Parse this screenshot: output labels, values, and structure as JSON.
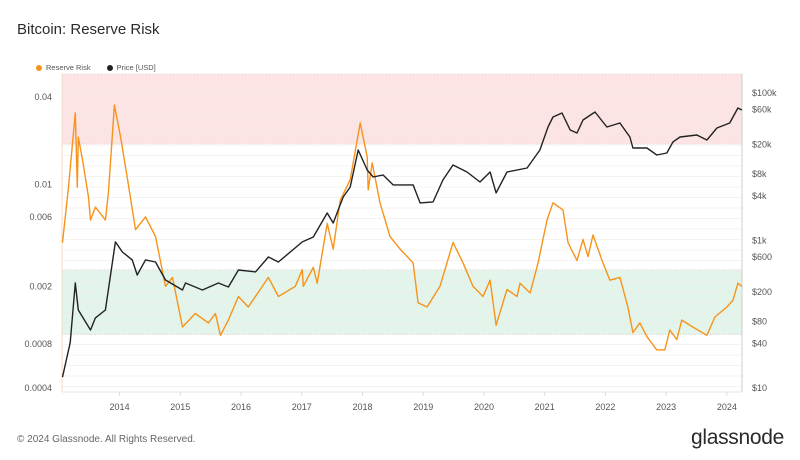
{
  "title": "Bitcoin: Reserve Risk",
  "footer": "© 2024 Glassnode. All Rights Reserved.",
  "logo": "glassnode",
  "colors": {
    "reserve_risk": "#f7931a",
    "price": "#222222",
    "red_zone": "#fde4e4",
    "green_zone": "#e3f5ea"
  },
  "chart_data": {
    "type": "line",
    "title": "Bitcoin: Reserve Risk",
    "legend": {
      "position": "top-left",
      "entries": [
        "Reserve Risk",
        "Price [USD]"
      ]
    },
    "x_range": [
      "2013-01-20",
      "2024-04-01"
    ],
    "x_ticks": [
      "2014",
      "2015",
      "2016",
      "2017",
      "2018",
      "2019",
      "2020",
      "2021",
      "2022",
      "2023",
      "2024"
    ],
    "y_left": {
      "scale": "log",
      "range": [
        0.000375,
        0.0576
      ],
      "ticks": [
        {
          "v": 0.04,
          "label": "0.04"
        },
        {
          "v": 0.01,
          "label": "0.01"
        },
        {
          "v": 0.006,
          "label": "0.006"
        },
        {
          "v": 0.002,
          "label": "0.002"
        },
        {
          "v": 0.0008,
          "label": "0.0008"
        },
        {
          "v": 0.0004,
          "label": "0.0004"
        }
      ]
    },
    "y_right": {
      "scale": "log",
      "range": [
        8.8,
        181000
      ],
      "ticks": [
        {
          "v": 100000,
          "label": "$100k"
        },
        {
          "v": 60000,
          "label": "$60k"
        },
        {
          "v": 20000,
          "label": "$20k"
        },
        {
          "v": 8000,
          "label": "$8k"
        },
        {
          "v": 4000,
          "label": "$4k"
        },
        {
          "v": 1000,
          "label": "$1k"
        },
        {
          "v": 600,
          "label": "$600"
        },
        {
          "v": 200,
          "label": "$200"
        },
        {
          "v": 80,
          "label": "$80"
        },
        {
          "v": 40,
          "label": "$40"
        },
        {
          "v": 10,
          "label": "$10"
        }
      ]
    },
    "zones": [
      {
        "name": "high",
        "axis": "left",
        "from": 0.019,
        "to": 0.0576,
        "color": "#fde4e4"
      },
      {
        "name": "low",
        "axis": "left",
        "from": 0.00093,
        "to": 0.0026,
        "color": "#e3f5ea"
      }
    ],
    "grid": true,
    "series": [
      {
        "name": "Reserve Risk",
        "axis": "left",
        "color": "#f7931a",
        "points": [
          [
            "2013-01-23",
            0.004
          ],
          [
            "2013-02-28",
            0.0096
          ],
          [
            "2013-04-10",
            0.0311
          ],
          [
            "2013-04-22",
            0.0096
          ],
          [
            "2013-04-28",
            0.0212
          ],
          [
            "2013-05-23",
            0.0148
          ],
          [
            "2013-06-28",
            0.0082
          ],
          [
            "2013-07-10",
            0.0057
          ],
          [
            "2013-08-09",
            0.007
          ],
          [
            "2013-10-08",
            0.0057
          ],
          [
            "2013-10-26",
            0.0088
          ],
          [
            "2013-12-01",
            0.0352
          ],
          [
            "2014-01-07",
            0.0212
          ],
          [
            "2014-02-18",
            0.0108
          ],
          [
            "2014-04-07",
            0.0049
          ],
          [
            "2014-06-06",
            0.006
          ],
          [
            "2014-08-05",
            0.0044
          ],
          [
            "2014-10-04",
            0.002
          ],
          [
            "2014-11-15",
            0.0023
          ],
          [
            "2015-01-14",
            0.00105
          ],
          [
            "2015-04-01",
            0.0013
          ],
          [
            "2015-06-19",
            0.00112
          ],
          [
            "2015-07-31",
            0.0013
          ],
          [
            "2015-08-30",
            0.00092
          ],
          [
            "2015-10-17",
            0.00117
          ],
          [
            "2015-12-16",
            0.0017
          ],
          [
            "2016-02-14",
            0.00144
          ],
          [
            "2016-06-14",
            0.0023
          ],
          [
            "2016-08-13",
            0.0017
          ],
          [
            "2016-11-23",
            0.002
          ],
          [
            "2017-01-04",
            0.0026
          ],
          [
            "2017-01-10",
            0.002
          ],
          [
            "2017-03-11",
            0.0027
          ],
          [
            "2017-04-04",
            0.0021
          ],
          [
            "2017-06-03",
            0.0054
          ],
          [
            "2017-07-09",
            0.0036
          ],
          [
            "2017-08-20",
            0.0078
          ],
          [
            "2017-10-19",
            0.0108
          ],
          [
            "2017-12-18",
            0.0265
          ],
          [
            "2018-01-29",
            0.0155
          ],
          [
            "2018-02-04",
            0.0092
          ],
          [
            "2018-02-28",
            0.0141
          ],
          [
            "2018-04-16",
            0.0075
          ],
          [
            "2018-06-15",
            0.0044
          ],
          [
            "2018-08-15",
            0.0036
          ],
          [
            "2018-11-01",
            0.0029
          ],
          [
            "2018-12-01",
            0.00154
          ],
          [
            "2019-01-24",
            0.00144
          ],
          [
            "2019-04-12",
            0.002
          ],
          [
            "2019-05-24",
            0.0029
          ],
          [
            "2019-06-29",
            0.004
          ],
          [
            "2019-08-28",
            0.0029
          ],
          [
            "2019-10-27",
            0.002
          ],
          [
            "2019-12-26",
            0.0017
          ],
          [
            "2020-02-07",
            0.0022
          ],
          [
            "2020-03-14",
            0.00108
          ],
          [
            "2020-05-19",
            0.0019
          ],
          [
            "2020-07-18",
            0.0017
          ],
          [
            "2020-08-05",
            0.0021
          ],
          [
            "2020-10-05",
            0.0018
          ],
          [
            "2020-11-22",
            0.0029
          ],
          [
            "2021-01-15",
            0.0057
          ],
          [
            "2021-02-20",
            0.0075
          ],
          [
            "2021-04-21",
            0.0067
          ],
          [
            "2021-05-21",
            0.004
          ],
          [
            "2021-07-14",
            0.003
          ],
          [
            "2021-08-19",
            0.0042
          ],
          [
            "2021-09-18",
            0.0032
          ],
          [
            "2021-10-18",
            0.0045
          ],
          [
            "2021-12-17",
            0.0029
          ],
          [
            "2022-01-28",
            0.0022
          ],
          [
            "2022-03-29",
            0.0023
          ],
          [
            "2022-05-16",
            0.00144
          ],
          [
            "2022-06-15",
            0.00096
          ],
          [
            "2022-07-27",
            0.00112
          ],
          [
            "2022-09-07",
            0.0009
          ],
          [
            "2022-11-06",
            0.00073
          ],
          [
            "2022-12-24",
            0.00073
          ],
          [
            "2023-01-23",
            0.001
          ],
          [
            "2023-03-06",
            0.00086
          ],
          [
            "2023-04-05",
            0.00117
          ],
          [
            "2023-06-10",
            0.00105
          ],
          [
            "2023-09-03",
            0.00092
          ],
          [
            "2023-10-21",
            0.00123
          ],
          [
            "2024-01-01",
            0.00144
          ],
          [
            "2024-02-06",
            0.0016
          ],
          [
            "2024-03-07",
            0.0021
          ],
          [
            "2024-03-31",
            0.002
          ]
        ]
      },
      {
        "name": "Price [USD]",
        "axis": "right",
        "color": "#222222",
        "points": [
          [
            "2013-01-23",
            14
          ],
          [
            "2013-03-10",
            41
          ],
          [
            "2013-04-10",
            265
          ],
          [
            "2013-04-28",
            114
          ],
          [
            "2013-07-10",
            61
          ],
          [
            "2013-08-09",
            89
          ],
          [
            "2013-10-08",
            114
          ],
          [
            "2013-12-07",
            955
          ],
          [
            "2014-01-18",
            698
          ],
          [
            "2014-03-18",
            544
          ],
          [
            "2014-04-17",
            340
          ],
          [
            "2014-06-06",
            544
          ],
          [
            "2014-08-05",
            510
          ],
          [
            "2014-10-04",
            291
          ],
          [
            "2015-01-14",
            213
          ],
          [
            "2015-02-01",
            265
          ],
          [
            "2015-05-14",
            213
          ],
          [
            "2015-08-18",
            265
          ],
          [
            "2015-10-17",
            234
          ],
          [
            "2015-12-16",
            398
          ],
          [
            "2016-03-28",
            374
          ],
          [
            "2016-06-14",
            597
          ],
          [
            "2016-08-13",
            510
          ],
          [
            "2017-01-04",
            955
          ],
          [
            "2017-03-11",
            1115
          ],
          [
            "2017-06-03",
            2360
          ],
          [
            "2017-07-09",
            1726
          ],
          [
            "2017-09-07",
            3890
          ],
          [
            "2017-10-19",
            5310
          ],
          [
            "2017-12-06",
            16870
          ],
          [
            "2018-01-29",
            9030
          ],
          [
            "2018-03-06",
            7260
          ],
          [
            "2018-05-05",
            7730
          ],
          [
            "2018-07-04",
            5660
          ],
          [
            "2018-11-01",
            5660
          ],
          [
            "2018-12-13",
            3230
          ],
          [
            "2019-03-01",
            3330
          ],
          [
            "2019-04-29",
            6610
          ],
          [
            "2019-06-29",
            10570
          ],
          [
            "2019-09-21",
            8490
          ],
          [
            "2019-12-08",
            6210
          ],
          [
            "2020-02-07",
            8490
          ],
          [
            "2020-03-14",
            4410
          ],
          [
            "2020-05-19",
            8490
          ],
          [
            "2020-09-17",
            9620
          ],
          [
            "2020-12-03",
            16870
          ],
          [
            "2021-01-21",
            34600
          ],
          [
            "2021-02-20",
            47300
          ],
          [
            "2021-04-15",
            53600
          ],
          [
            "2021-06-03",
            31500
          ],
          [
            "2021-07-14",
            28700
          ],
          [
            "2021-08-19",
            43000
          ],
          [
            "2021-10-30",
            55200
          ],
          [
            "2022-01-10",
            34600
          ],
          [
            "2022-03-29",
            39200
          ],
          [
            "2022-05-28",
            25300
          ],
          [
            "2022-06-15",
            17960
          ],
          [
            "2022-09-07",
            17960
          ],
          [
            "2022-11-06",
            14400
          ],
          [
            "2023-01-05",
            15360
          ],
          [
            "2023-02-11",
            21700
          ],
          [
            "2023-03-25",
            25300
          ],
          [
            "2023-07-04",
            26900
          ],
          [
            "2023-09-03",
            23060
          ],
          [
            "2023-11-02",
            33500
          ],
          [
            "2024-01-18",
            39200
          ],
          [
            "2024-03-07",
            62600
          ],
          [
            "2024-03-31",
            58800
          ]
        ]
      }
    ]
  }
}
